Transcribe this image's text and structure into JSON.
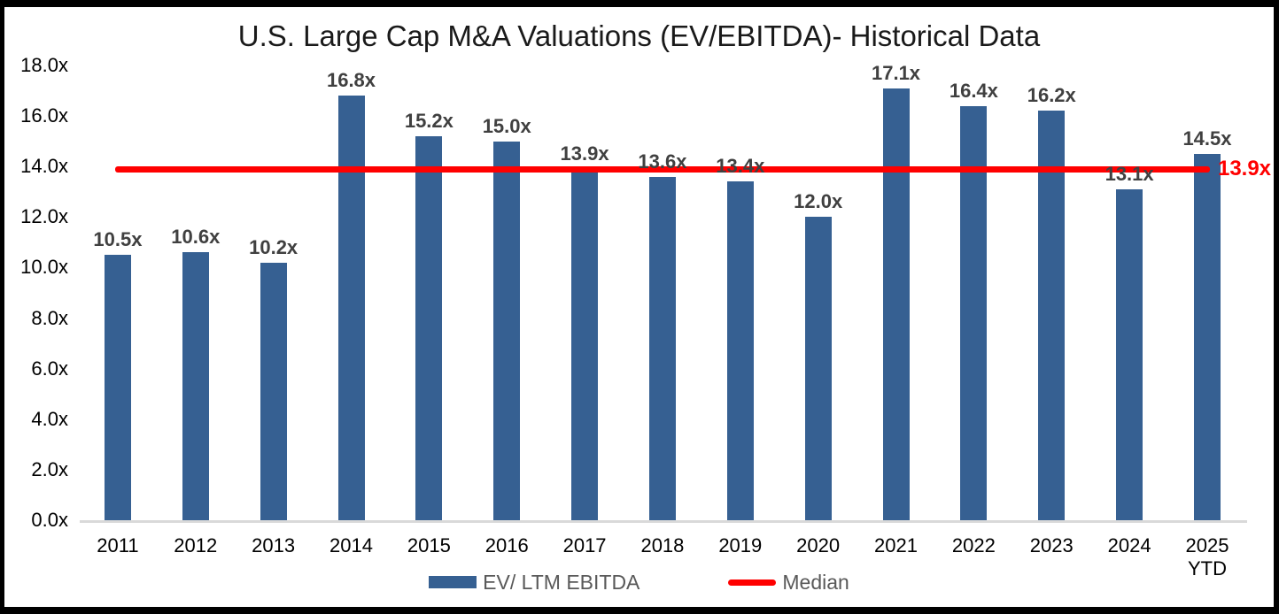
{
  "colors": {
    "bar": "#366092",
    "median_line": "#FF0000",
    "value_label": "#404040",
    "axis_text": "#000000",
    "legend_text": "#595959",
    "axis_line": "#D9D9D9",
    "border": "#000000"
  },
  "legend": {
    "series_label": "EV/ LTM EBITDA",
    "median_label": "Median"
  },
  "chart_data": {
    "type": "bar",
    "title": "U.S. Large Cap M&A Valuations (EV/EBITDA)- Historical Data",
    "categories": [
      "2011",
      "2012",
      "2013",
      "2014",
      "2015",
      "2016",
      "2017",
      "2018",
      "2019",
      "2020",
      "2021",
      "2022",
      "2023",
      "2024",
      "2025 YTD"
    ],
    "values": [
      10.5,
      10.6,
      10.2,
      16.8,
      15.2,
      15.0,
      13.9,
      13.6,
      13.4,
      12.0,
      17.1,
      16.4,
      16.2,
      13.1,
      14.5
    ],
    "value_labels": [
      "10.5x",
      "10.6x",
      "10.2x",
      "16.8x",
      "15.2x",
      "15.0x",
      "13.9x",
      "13.6x",
      "13.4x",
      "12.0x",
      "17.1x",
      "16.4x",
      "16.2x",
      "13.1x",
      "14.5x"
    ],
    "median": 13.9,
    "median_label": "13.9x",
    "xlabel": "",
    "ylabel": "",
    "ylim": [
      0,
      18
    ],
    "y_ticks": [
      0,
      2,
      4,
      6,
      8,
      10,
      12,
      14,
      16,
      18
    ],
    "y_tick_labels": [
      "0.0x",
      "2.0x",
      "4.0x",
      "6.0x",
      "8.0x",
      "10.0x",
      "12.0x",
      "14.0x",
      "16.0x",
      "18.0x"
    ],
    "grid": false,
    "legend_position": "bottom",
    "series": [
      {
        "name": "EV/ LTM EBITDA",
        "type": "bar"
      },
      {
        "name": "Median",
        "type": "line",
        "value": 13.9
      }
    ]
  }
}
